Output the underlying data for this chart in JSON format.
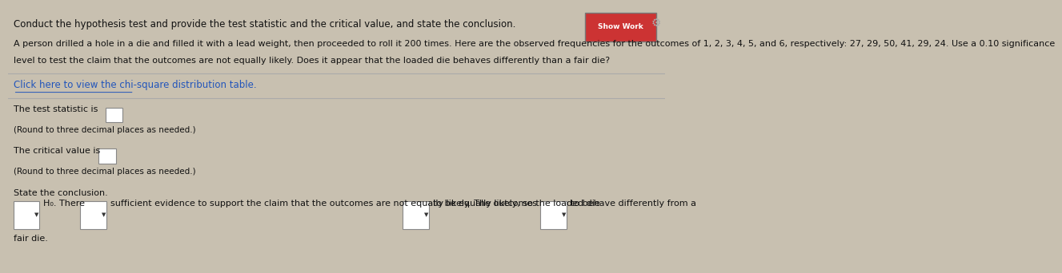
{
  "bg_color": "#c8c0b0",
  "panel_color": "#d4cdc0",
  "title_line1": "Conduct the hypothesis test and provide the test statistic and the critical value, and state the conclusion.",
  "body_line1": "A person drilled a hole in a die and filled it with a lead weight, then proceeded to roll it 200 times. Here are the observed frequencies for the outcomes of 1, 2, 3, 4, 5, and 6, respectively: 27, 29, 50, 41, 29, 24. Use a 0.10 significance",
  "body_line2": "level to test the claim that the outcomes are not equally likely. Does it appear that the loaded die behaves differently than a fair die?",
  "link_text": "Click here to view the chi-square distribution table.",
  "test_stat_label": "The test statistic is",
  "round_note1": "(Round to three decimal places as needed.)",
  "critical_val_label": "The critical value is",
  "round_note2": "(Round to three decimal places as needed.)",
  "state_conclusion_label": "State the conclusion.",
  "h0_text": "H₀. There",
  "conclusion_mid": "sufficient evidence to support the claim that the outcomes are not equally likely. The outcomes",
  "conclusion_end1": "to be equally likely, so the loaded die",
  "conclusion_end2": "to behave differently from a",
  "conclusion_line2": "fair die.",
  "font_size_title": 8.5,
  "font_size_body": 8.0,
  "font_size_link": 8.5,
  "text_color": "#111111",
  "link_color": "#2255bb",
  "show_work_text": "Show Work"
}
